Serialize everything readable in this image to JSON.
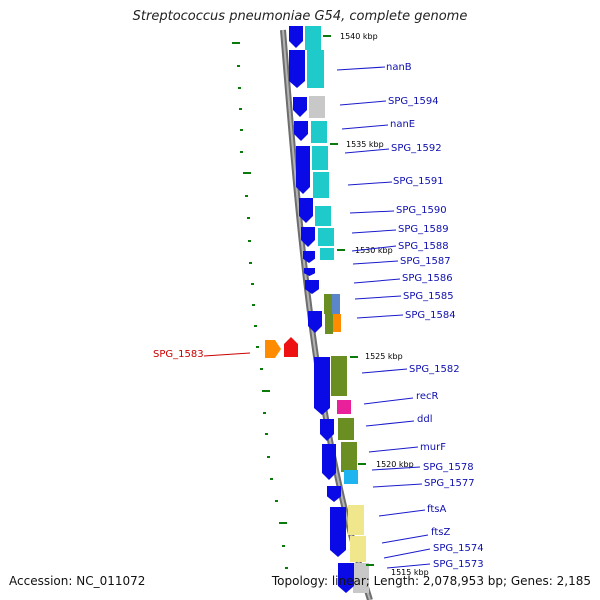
{
  "title": "Streptococcus pneumoniae G54, complete genome",
  "accession": "Accession: NC_011072",
  "topology": "Topology: linear; Length: 2,078,953 bp; Genes: 2,185",
  "colors": {
    "forward_strand": "#0a0ae6",
    "backbone": "#8c8c8c",
    "tick": "#0a7a0a",
    "label_line": "#1a1acc",
    "highlight": "#cc0000",
    "cyan": "#1fcaca",
    "gray": "#c8c8c8",
    "olive": "#6b8e23",
    "magenta": "#e8209a",
    "skyblue": "#1eb4f0",
    "khaki": "#f0e68c",
    "orange": "#ff8c00",
    "red": "#ee1111"
  },
  "kbp_marks": [
    {
      "label": "1540 kbp"
    },
    {
      "label": "1535 kbp"
    },
    {
      "label": "1530 kbp"
    },
    {
      "label": "1525 kbp"
    },
    {
      "label": "1520 kbp"
    },
    {
      "label": "1515 kbp"
    }
  ],
  "gene_labels": [
    {
      "label": "nanB"
    },
    {
      "label": "SPG_1594"
    },
    {
      "label": "nanE"
    },
    {
      "label": "SPG_1592"
    },
    {
      "label": "SPG_1591"
    },
    {
      "label": "SPG_1590"
    },
    {
      "label": "SPG_1589"
    },
    {
      "label": "SPG_1588"
    },
    {
      "label": "SPG_1587"
    },
    {
      "label": "SPG_1586"
    },
    {
      "label": "SPG_1585"
    },
    {
      "label": "SPG_1584"
    },
    {
      "label": "SPG_1583"
    },
    {
      "label": "SPG_1582"
    },
    {
      "label": "recR"
    },
    {
      "label": "ddl"
    },
    {
      "label": "murF"
    },
    {
      "label": "SPG_1578"
    },
    {
      "label": "SPG_1577"
    },
    {
      "label": "ftsA"
    },
    {
      "label": "ftsZ"
    },
    {
      "label": "SPG_1574"
    },
    {
      "label": "SPG_1573"
    }
  ]
}
